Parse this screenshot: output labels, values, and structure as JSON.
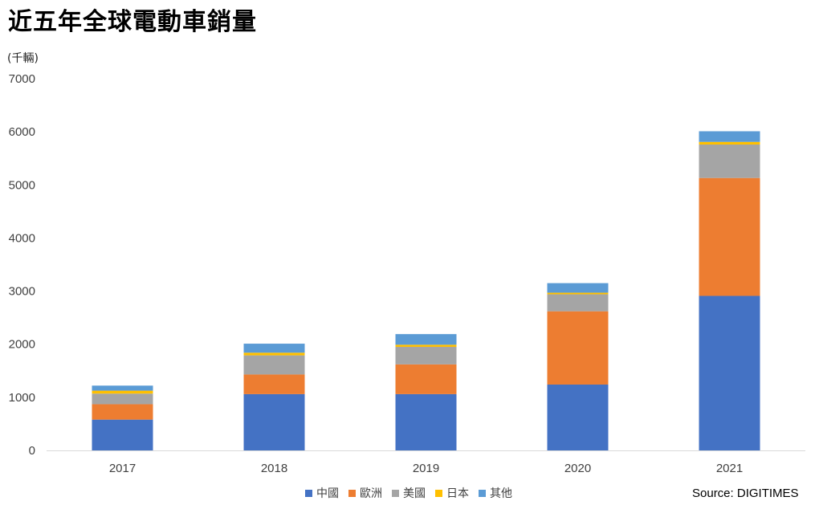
{
  "title": "近五年全球電動車銷量",
  "unit_label": "(千輛)",
  "source": "Source: DIGITIMES",
  "chart_data": {
    "type": "bar",
    "stacked": true,
    "title": "近五年全球電動車銷量",
    "ylabel": "(千輛)",
    "xlabel": "",
    "ylim": [
      0,
      7000
    ],
    "yticks": [
      0,
      1000,
      2000,
      3000,
      4000,
      5000,
      6000,
      7000
    ],
    "grid": false,
    "legend_position": "bottom",
    "categories": [
      "2017",
      "2018",
      "2019",
      "2020",
      "2021"
    ],
    "series": [
      {
        "name": "中國",
        "color": "#4472C4",
        "values": [
          580,
          1060,
          1060,
          1240,
          2910
        ]
      },
      {
        "name": "歐洲",
        "color": "#ED7D31",
        "values": [
          290,
          370,
          560,
          1380,
          2220
        ]
      },
      {
        "name": "美國",
        "color": "#A5A5A5",
        "values": [
          200,
          360,
          330,
          320,
          630
        ]
      },
      {
        "name": "日本",
        "color": "#FFC000",
        "values": [
          55,
          50,
          40,
          30,
          50
        ]
      },
      {
        "name": "其他",
        "color": "#5B9BD5",
        "values": [
          95,
          170,
          200,
          180,
          200
        ]
      }
    ]
  }
}
